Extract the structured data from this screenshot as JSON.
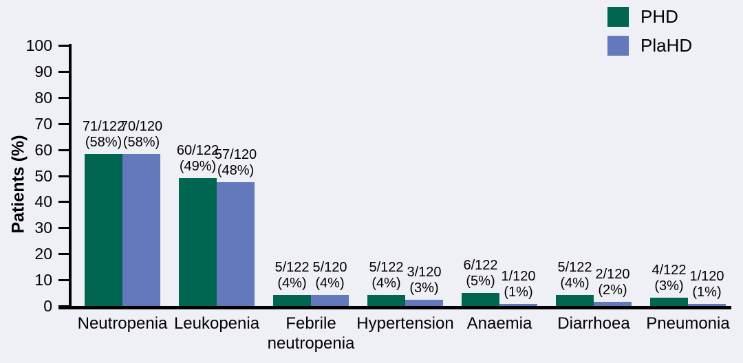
{
  "chart_data": {
    "type": "bar",
    "title": "",
    "xlabel": "",
    "ylabel": "Patients (%)",
    "ylim": [
      0,
      100
    ],
    "yticks": [
      0,
      10,
      20,
      30,
      40,
      50,
      60,
      70,
      80,
      90,
      100
    ],
    "grid": false,
    "legend_position": "top-right",
    "background_color": "#EFEFF6",
    "axis_color": "#000000",
    "categories": [
      "Neutropenia",
      "Leukopenia",
      "Febrile\nneutropenia",
      "Hypertension",
      "Anaemia",
      "Diarrhoea",
      "Pneumonia"
    ],
    "series": [
      {
        "name": "PHD",
        "color": "#006651",
        "bars": [
          {
            "frac": "71/122",
            "pct": "(58%)",
            "value": 58.2
          },
          {
            "frac": "60/122",
            "pct": "(49%)",
            "value": 49.2
          },
          {
            "frac": "5/122",
            "pct": "(4%)",
            "value": 4.1
          },
          {
            "frac": "5/122",
            "pct": "(4%)",
            "value": 4.1
          },
          {
            "frac": "6/122",
            "pct": "(5%)",
            "value": 4.9
          },
          {
            "frac": "5/122",
            "pct": "(4%)",
            "value": 4.1
          },
          {
            "frac": "4/122",
            "pct": "(3%)",
            "value": 3.3
          }
        ]
      },
      {
        "name": "PlaHD",
        "color": "#6379BB",
        "bars": [
          {
            "frac": "70/120",
            "pct": "(58%)",
            "value": 58.3
          },
          {
            "frac": "57/120",
            "pct": "(48%)",
            "value": 47.5
          },
          {
            "frac": "5/120",
            "pct": "(4%)",
            "value": 4.2
          },
          {
            "frac": "3/120",
            "pct": "(3%)",
            "value": 2.5
          },
          {
            "frac": "1/120",
            "pct": "(1%)",
            "value": 0.8
          },
          {
            "frac": "2/120",
            "pct": "(2%)",
            "value": 1.7
          },
          {
            "frac": "1/120",
            "pct": "(1%)",
            "value": 0.8
          }
        ]
      }
    ]
  }
}
